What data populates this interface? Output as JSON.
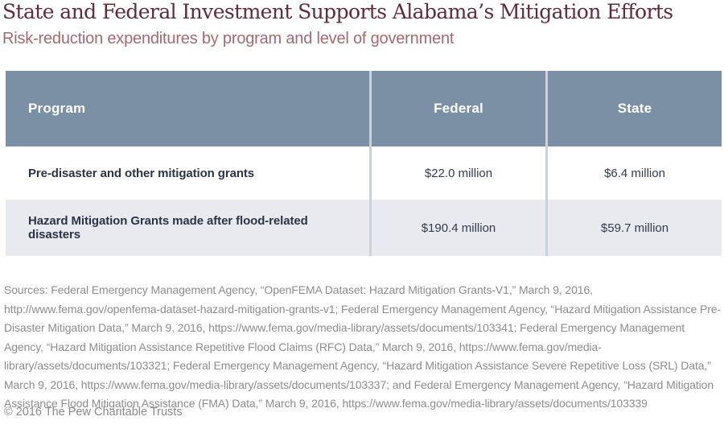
{
  "header": {
    "title": "State and Federal Investment Supports Alabama’s Mitigation Efforts",
    "subtitle": "Risk-reduction expenditures by program and level of government"
  },
  "chart_data": {
    "type": "table",
    "title": "State and Federal Investment Supports Alabama’s Mitigation Efforts",
    "subtitle": "Risk-reduction expenditures by program and level of government",
    "columns": [
      "Program",
      "Federal",
      "State"
    ],
    "rows": [
      {
        "program": "Pre-disaster and other mitigation grants",
        "federal": "$22.0 million",
        "state": "$6.4 million"
      },
      {
        "program": "Hazard Mitigation Grants made after flood-related disasters",
        "federal": "$190.4 million",
        "state": "$59.7 million"
      }
    ],
    "numeric_values_millions_usd": {
      "federal": [
        22.0,
        190.4
      ],
      "state": [
        6.4,
        59.7
      ]
    }
  },
  "footer": {
    "sources": "Sources: Federal Emergency Management Agency, “OpenFEMA Dataset: Hazard Mitigation Grants-V1,” March 9, 2016, http://www.fema.gov/openfema-dataset-hazard-mitigation-grants-v1; Federal Emergency Management Agency, “Hazard Mitigation Assistance Pre-Disaster Mitigation Data,” March 9, 2016, https://www.fema.gov/media-library/assets/documents/103341; Federal Emergency Management Agency, “Hazard Mitigation Assistance Repetitive Flood Claims (RFC) Data,” March 9, 2016, https://www.fema.gov/media-library/assets/documents/103321; Federal Emergency Management Agency, “Hazard Mitigation Assistance Severe Repetitive Loss (SRL) Data,” March 9, 2016, https://www.fema.gov/media-library/assets/documents/103337; and Federal Emergency Management Agency, “Hazard Mitigation Assistance Flood Mitigation Assistance (FMA) Data,” March 9, 2016, https://www.fema.gov/media-library/assets/documents/103339",
    "copyright": "© 2016 The Pew Charitable Trusts"
  },
  "colors": {
    "title_maroon": "#5f2c39",
    "subtitle_rose": "#a26b72",
    "table_header_slate": "#7b90a5",
    "row_alt_gray": "#e9eaef",
    "column_divider": "#ccd2db",
    "label_navy": "#2b3447",
    "value_navy": "#333b4e",
    "source_gray": "#8d8d8d"
  }
}
